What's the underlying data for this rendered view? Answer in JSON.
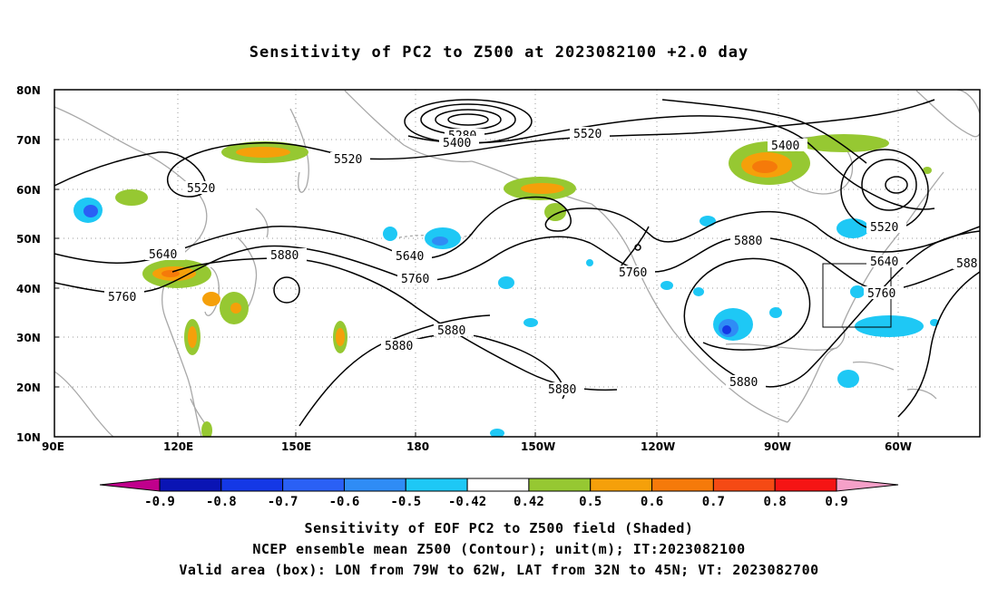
{
  "title": "Sensitivity of PC2 to Z500 at 2023082100 +2.0 day",
  "axes": {
    "lat_labels": [
      "80N",
      "70N",
      "60N",
      "50N",
      "40N",
      "30N",
      "20N",
      "10N"
    ],
    "lon_labels": [
      "90E",
      "120E",
      "150E",
      "180",
      "150W",
      "120W",
      "90W",
      "60W"
    ]
  },
  "contour_labels": [
    "5280",
    "5400",
    "5520",
    "5520",
    "5400",
    "5520",
    "5640",
    "5760",
    "5880",
    "5640",
    "5760",
    "5880",
    "5880",
    "5880",
    "5760",
    "5880",
    "5880",
    "5520",
    "5640",
    "5760",
    "588"
  ],
  "colorbar": {
    "ticks": [
      "-0.9",
      "-0.8",
      "-0.7",
      "-0.6",
      "-0.5",
      "-0.42",
      "0.42",
      "0.5",
      "0.6",
      "0.7",
      "0.8",
      "0.9"
    ],
    "colors": [
      "#c0008c",
      "#0a14b4",
      "#1438e6",
      "#2a60f5",
      "#2f8cf5",
      "#1ec8f5",
      "#ffffff",
      "#96c832",
      "#f5a00a",
      "#f57a0a",
      "#f54a14",
      "#f51414",
      "#f5a0c8"
    ]
  },
  "footer": {
    "line1": "Sensitivity of EOF PC2 to Z500 field (Shaded)",
    "line2": "NCEP ensemble mean Z500 (Contour); unit(m); IT:2023082100",
    "line3": "Valid area (box): LON from 79W to 62W, LAT from 32N to 45N; VT: 2023082700"
  },
  "valid_area": {
    "lon": [
      "79W",
      "62W"
    ],
    "lat": [
      "32N",
      "45N"
    ]
  }
}
